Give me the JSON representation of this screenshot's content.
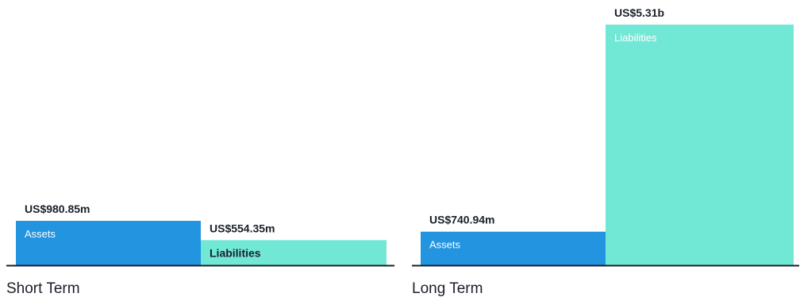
{
  "chart_data": {
    "type": "bar",
    "colors": {
      "assets": "#2394df",
      "liabilities": "#71e7d6",
      "baseline": "#1a1f2b"
    },
    "groups": [
      {
        "label": "Short Term",
        "bars": [
          {
            "name": "Assets",
            "value": 980.85,
            "value_label": "US$980.85m"
          },
          {
            "name": "Liabilities",
            "value": 554.35,
            "value_label": "US$554.35m"
          }
        ]
      },
      {
        "label": "Long Term",
        "bars": [
          {
            "name": "Assets",
            "value": 740.94,
            "value_label": "US$740.94m"
          },
          {
            "name": "Liabilities",
            "value": 5310,
            "value_label": "US$5.31b"
          }
        ]
      }
    ],
    "ylim": [
      0,
      5310
    ]
  }
}
